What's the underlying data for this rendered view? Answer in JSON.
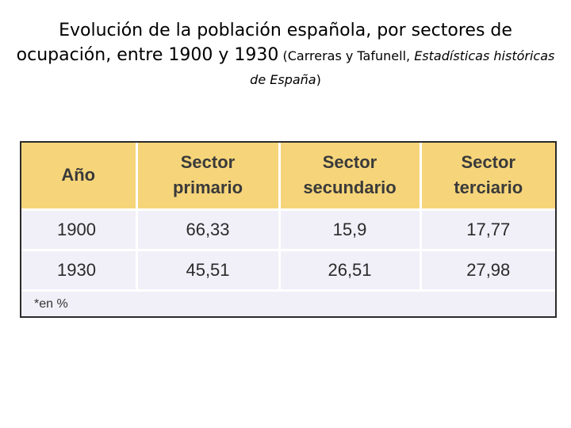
{
  "title": {
    "main": "Evolución de la población española, por sectores de ocupación, entre 1900 y 1930",
    "ref_open": "(Carreras y Tafunell, ",
    "ref_italic": "Estadísticas históricas de España",
    "ref_close": ")"
  },
  "table": {
    "headers": [
      [
        "Año"
      ],
      [
        "Sector",
        "primario"
      ],
      [
        "Sector",
        "secundario"
      ],
      [
        "Sector",
        "terciario"
      ]
    ],
    "rows": [
      [
        "1900",
        "66,33",
        "15,9",
        "17,77"
      ],
      [
        "1930",
        "45,51",
        "26,51",
        "27,98"
      ]
    ],
    "note": "*en %"
  },
  "colors": {
    "header_bg": "#f6d57a",
    "body_bg": "#f1f0f8"
  }
}
